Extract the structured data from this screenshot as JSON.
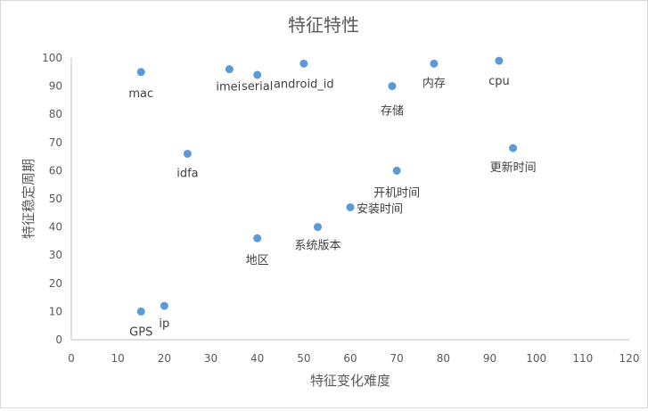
{
  "chart_data": {
    "type": "scatter",
    "title": "特征特性",
    "xlabel": "特征变化难度",
    "ylabel": "特征稳定周期",
    "xlim": [
      0,
      120
    ],
    "ylim": [
      0,
      100
    ],
    "xticks": [
      "0",
      "10",
      "20",
      "30",
      "40",
      "50",
      "60",
      "70",
      "80",
      "90",
      "100",
      "110",
      "120"
    ],
    "yticks": [
      "0",
      "10",
      "20",
      "30",
      "40",
      "50",
      "60",
      "70",
      "80",
      "90",
      "100"
    ],
    "grid": false,
    "marker_color": "#5b9bd5",
    "points": [
      {
        "label": "mac",
        "x": 15,
        "y": 95
      },
      {
        "label": "imei",
        "x": 34,
        "y": 96
      },
      {
        "label": "serial",
        "x": 40,
        "y": 94
      },
      {
        "label": "android_id",
        "x": 50,
        "y": 98
      },
      {
        "label": "存储",
        "x": 69,
        "y": 90
      },
      {
        "label": "内存",
        "x": 78,
        "y": 98
      },
      {
        "label": "cpu",
        "x": 92,
        "y": 99
      },
      {
        "label": "idfa",
        "x": 25,
        "y": 66
      },
      {
        "label": "更新时间",
        "x": 95,
        "y": 68
      },
      {
        "label": "开机时间",
        "x": 70,
        "y": 60
      },
      {
        "label": "安装时间",
        "x": 60,
        "y": 47
      },
      {
        "label": "系统版本",
        "x": 53,
        "y": 40
      },
      {
        "label": "地区",
        "x": 40,
        "y": 36
      },
      {
        "label": "GPS",
        "x": 15,
        "y": 10
      },
      {
        "label": "ip",
        "x": 20,
        "y": 12
      }
    ]
  }
}
